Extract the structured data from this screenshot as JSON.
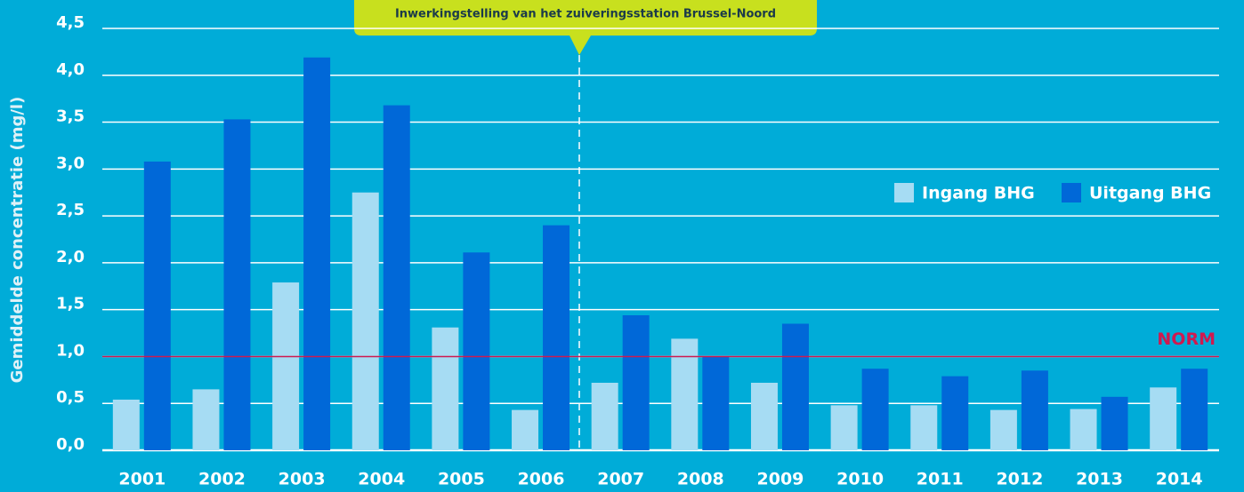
{
  "chart_data": {
    "type": "bar",
    "y_label": "Gemiddelde concentratie (mg/l)",
    "annotation": "Inwerkingstelling van het zuiveringsstation Brussel-Noord",
    "categories": [
      "2001",
      "2002",
      "2003",
      "2004",
      "2005",
      "2006",
      "2007",
      "2008",
      "2009",
      "2010",
      "2011",
      "2012",
      "2013",
      "2014"
    ],
    "series": [
      {
        "name": "Ingang BHG",
        "color": "#a6dcf3",
        "values": [
          0.54,
          0.65,
          1.79,
          2.75,
          1.31,
          0.43,
          0.72,
          1.19,
          0.72,
          0.48,
          0.48,
          0.43,
          0.44,
          0.67
        ]
      },
      {
        "name": "Uitgang BHG",
        "color": "#0068d8",
        "values": [
          3.08,
          3.53,
          4.19,
          3.68,
          2.11,
          2.4,
          1.44,
          1.0,
          1.35,
          0.87,
          0.79,
          0.85,
          0.57,
          0.87
        ]
      }
    ],
    "norm": {
      "value": 1,
      "label": "NORM",
      "color": "#d0194f"
    },
    "ylim": [
      0,
      4.5
    ],
    "yticks": [
      {
        "value": 0,
        "label": "0,0"
      },
      {
        "value": 0.5,
        "label": "0,5"
      },
      {
        "value": 1,
        "label": "1,0"
      },
      {
        "value": 1.5,
        "label": "1,5"
      },
      {
        "value": 2,
        "label": "2,0"
      },
      {
        "value": 2.5,
        "label": "2,5"
      },
      {
        "value": 3,
        "label": "3,0"
      },
      {
        "value": 3.5,
        "label": "3,5"
      },
      {
        "value": 4,
        "label": "4,0"
      },
      {
        "value": 4.5,
        "label": "4,5"
      }
    ],
    "grid": true
  }
}
